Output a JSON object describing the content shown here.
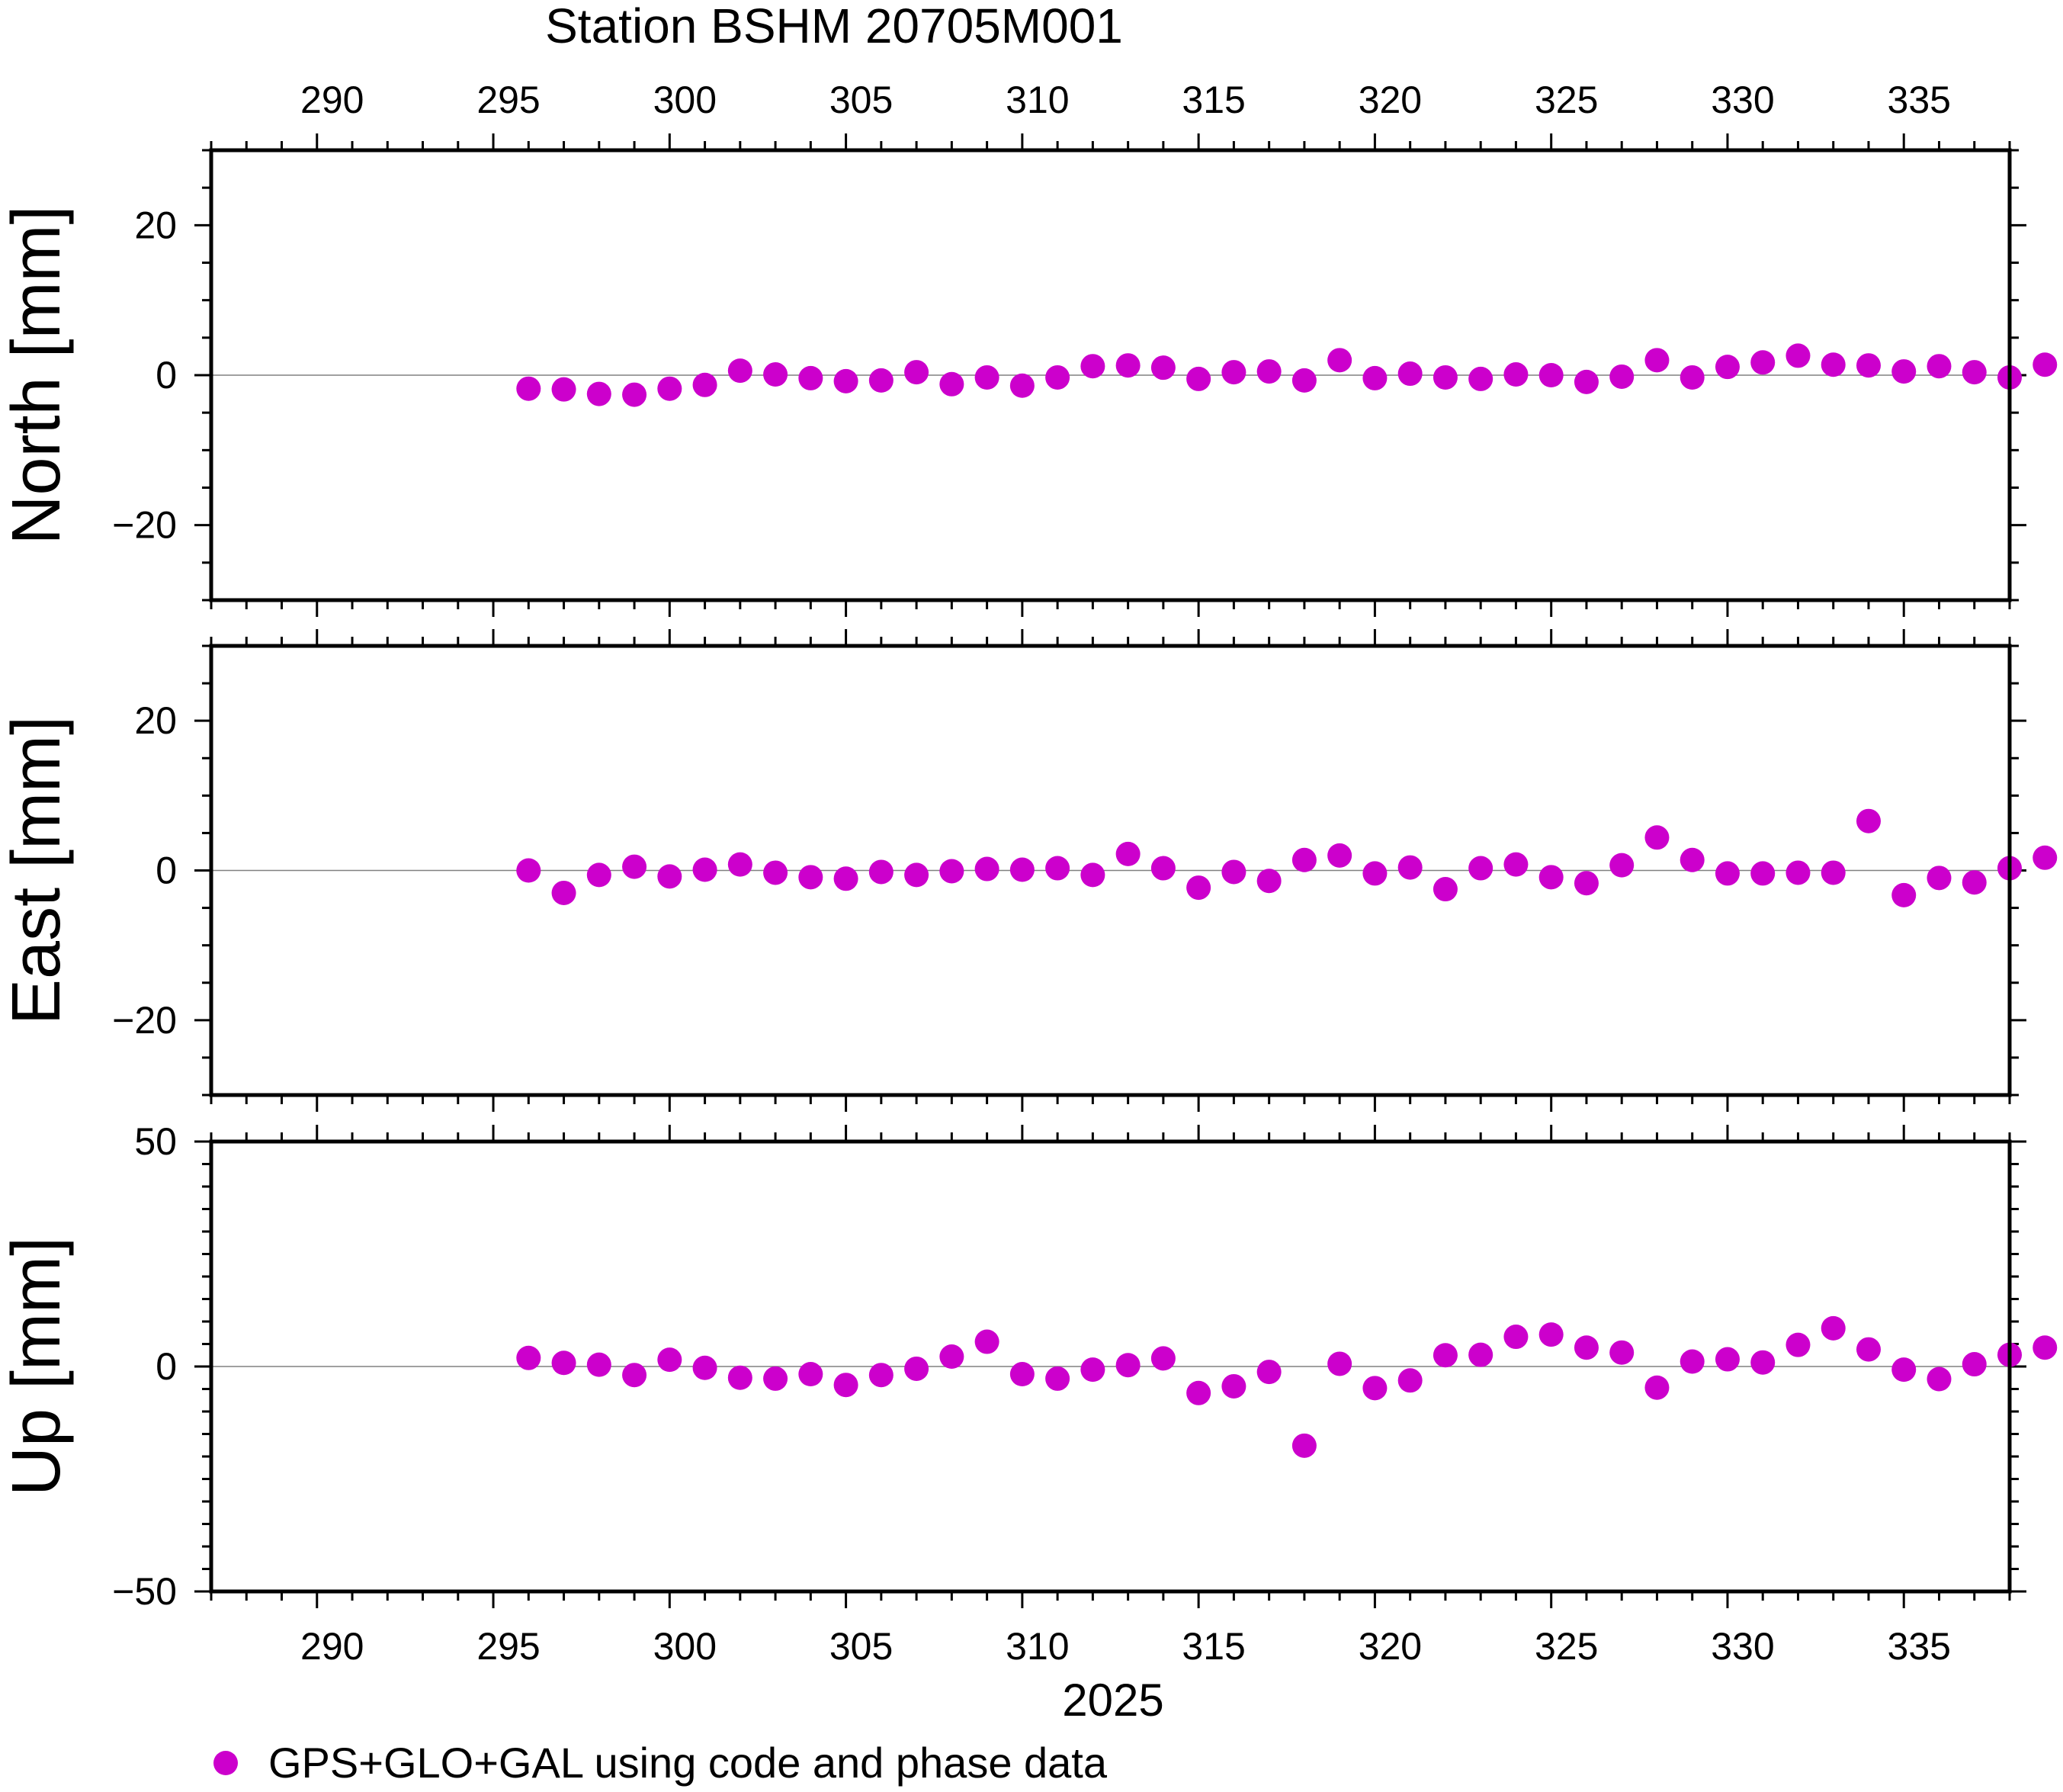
{
  "chart_data": {
    "type": "scatter",
    "title": "Station BSHM 20705M001",
    "xlabel": "2025",
    "x_ticks": [
      290,
      295,
      300,
      305,
      310,
      315,
      320,
      325,
      330,
      335
    ],
    "xlim": [
      287,
      338
    ],
    "x": [
      296,
      297,
      298,
      299,
      300,
      301,
      302,
      303,
      304,
      305,
      306,
      307,
      308,
      309,
      310,
      311,
      312,
      313,
      314,
      315,
      316,
      317,
      318,
      319,
      320,
      321,
      322,
      323,
      324,
      325,
      326,
      327,
      328,
      329,
      330,
      331,
      332,
      333,
      334,
      335,
      336,
      337,
      338,
      339
    ],
    "legend": {
      "label": "GPS+GLO+GAL using code and phase data",
      "color": "#cc00cc",
      "placement": "bottom-left"
    },
    "grid": false,
    "panels": [
      {
        "ylabel": "North [mm]",
        "ylim": [
          -30,
          30
        ],
        "y_ticks": [
          -20,
          0,
          20
        ],
        "y_tick_labels": [
          "−20",
          "0",
          "20"
        ],
        "values": [
          -1.8,
          -1.9,
          -2.5,
          -2.6,
          -1.8,
          -1.3,
          0.6,
          0.1,
          -0.4,
          -0.8,
          -0.7,
          0.4,
          -1.2,
          -0.3,
          -1.4,
          -0.3,
          1.2,
          1.3,
          1.0,
          -0.5,
          0.4,
          0.5,
          -0.7,
          2.0,
          -0.4,
          0.2,
          -0.3,
          -0.5,
          0.1,
          0.0,
          -0.9,
          -0.2,
          2.0,
          -0.3,
          1.1,
          1.7,
          2.6,
          1.4,
          1.3,
          0.5,
          1.2,
          0.4,
          -0.3,
          1.4
        ]
      },
      {
        "ylabel": "East [mm]",
        "ylim": [
          -30,
          30
        ],
        "y_ticks": [
          -20,
          0,
          20
        ],
        "y_tick_labels": [
          "−20",
          "0",
          "20"
        ],
        "values": [
          0.0,
          -3.0,
          -0.6,
          0.5,
          -0.8,
          0.1,
          0.8,
          -0.3,
          -0.9,
          -1.1,
          -0.2,
          -0.6,
          -0.1,
          0.2,
          0.1,
          0.3,
          -0.6,
          2.2,
          0.3,
          -2.3,
          -0.2,
          -1.4,
          1.4,
          2.0,
          -0.4,
          0.4,
          -2.5,
          0.3,
          0.8,
          -0.9,
          -1.7,
          0.7,
          4.4,
          1.4,
          -0.4,
          -0.4,
          -0.3,
          -0.3,
          6.6,
          -3.3,
          -1.0,
          -1.6,
          0.3,
          1.7
        ]
      },
      {
        "ylabel": "Up [mm]",
        "ylim": [
          -50,
          50
        ],
        "y_ticks": [
          -50,
          0,
          50
        ],
        "y_tick_labels": [
          "−50",
          "0",
          "50"
        ],
        "values": [
          1.9,
          0.8,
          0.4,
          -1.9,
          1.5,
          -0.3,
          -2.5,
          -2.7,
          -1.7,
          -4.1,
          -1.9,
          -0.5,
          2.2,
          5.5,
          -1.7,
          -2.7,
          -0.7,
          0.3,
          1.8,
          -5.9,
          -4.4,
          -1.2,
          -17.6,
          0.6,
          -4.8,
          -3.1,
          2.5,
          2.6,
          6.6,
          7.1,
          4.2,
          3.1,
          -4.7,
          1.1,
          1.6,
          0.9,
          4.8,
          8.5,
          3.8,
          -0.7,
          -2.8,
          0.5,
          2.6,
          4.2
        ]
      }
    ]
  }
}
